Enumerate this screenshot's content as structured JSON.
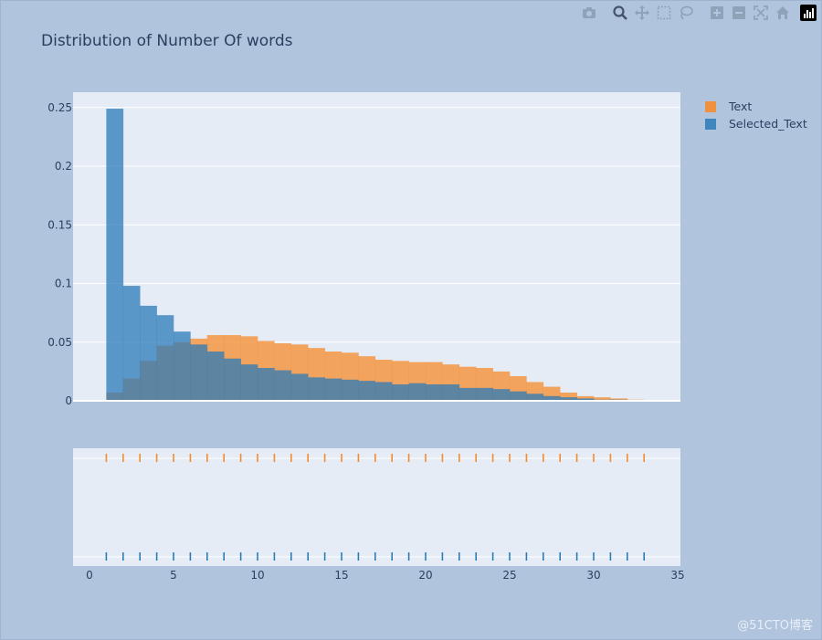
{
  "title": "Distribution of Number Of words",
  "watermark": "@51CTO博客",
  "modebar": [
    {
      "icon": "camera-icon"
    },
    {
      "icon": "zoom-icon"
    },
    {
      "icon": "pan-icon"
    },
    {
      "icon": "box-select-icon"
    },
    {
      "icon": "lasso-icon"
    },
    {
      "icon": "zoom-in-icon"
    },
    {
      "icon": "zoom-out-icon"
    },
    {
      "icon": "autoscale-icon"
    },
    {
      "icon": "home-icon"
    },
    {
      "icon": "plotly-logo-icon"
    }
  ],
  "colors": {
    "background": "#b0c4de",
    "plot_bg": "#e5ecf6",
    "text": "#2a3f5f",
    "Text": "#f68b2a",
    "Selected_Text": "#2b7bb9"
  },
  "legend": [
    {
      "name": "Text",
      "color": "#f0913f"
    },
    {
      "name": "Selected_Text",
      "color": "#3d87be"
    }
  ],
  "chart_data": {
    "type": "bar",
    "title": "Distribution of Number Of words",
    "bar_mode": "overlay",
    "bin_width": 1,
    "bin_start": 1,
    "ylim": [
      0,
      0.26
    ],
    "xlim": [
      -1,
      35
    ],
    "yticks": [
      "0",
      "0.05",
      "0.1",
      "0.15",
      "0.2",
      "0.25"
    ],
    "ytick_values": [
      0,
      0.05,
      0.1,
      0.15,
      0.2,
      0.25
    ],
    "xticks": [
      "0",
      "5",
      "10",
      "15",
      "20",
      "25",
      "30",
      "35"
    ],
    "xtick_values": [
      0,
      5,
      10,
      15,
      20,
      25,
      30,
      35
    ],
    "legend_position": "top-right",
    "series": [
      {
        "name": "Text",
        "values": [
          0.007,
          0.019,
          0.034,
          0.047,
          0.05,
          0.053,
          0.056,
          0.056,
          0.055,
          0.051,
          0.049,
          0.048,
          0.045,
          0.042,
          0.041,
          0.038,
          0.035,
          0.034,
          0.033,
          0.033,
          0.031,
          0.029,
          0.028,
          0.025,
          0.021,
          0.016,
          0.012,
          0.007,
          0.004,
          0.003,
          0.002,
          0.001
        ]
      },
      {
        "name": "Selected_Text",
        "values": [
          0.249,
          0.098,
          0.081,
          0.073,
          0.059,
          0.048,
          0.042,
          0.036,
          0.031,
          0.028,
          0.026,
          0.023,
          0.02,
          0.019,
          0.018,
          0.017,
          0.016,
          0.014,
          0.015,
          0.014,
          0.014,
          0.011,
          0.011,
          0.01,
          0.008,
          0.006,
          0.004,
          0.003,
          0.002,
          0.001,
          0.001,
          0.0
        ]
      }
    ],
    "rug": {
      "Text_positions": [
        1,
        2,
        3,
        4,
        5,
        6,
        7,
        8,
        9,
        10,
        11,
        12,
        13,
        14,
        15,
        16,
        17,
        18,
        19,
        20,
        21,
        22,
        23,
        24,
        25,
        26,
        27,
        28,
        29,
        30,
        31,
        32,
        33
      ],
      "Selected_Text_positions": [
        1,
        2,
        3,
        4,
        5,
        6,
        7,
        8,
        9,
        10,
        11,
        12,
        13,
        14,
        15,
        16,
        17,
        18,
        19,
        20,
        21,
        22,
        23,
        24,
        25,
        26,
        27,
        28,
        29,
        30,
        31,
        32,
        33
      ]
    }
  }
}
